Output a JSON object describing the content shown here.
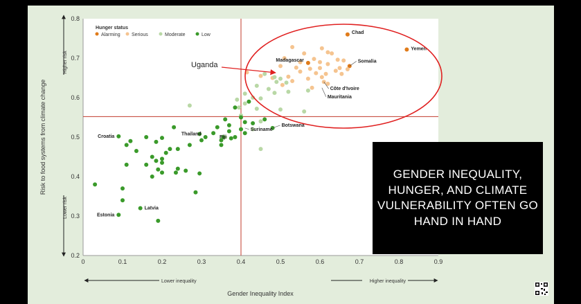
{
  "callout": {
    "text": "GENDER INEQUALITY, HUNGER, AND CLIMATE VULNERABILITY OFTEN GO HAND IN HAND"
  },
  "annotation": {
    "text": "Uganda"
  },
  "chart_data": {
    "type": "scatter",
    "xlabel": "Gender Inequality Index",
    "ylabel": "Risk to food systems from climate change",
    "x_arrow_left": "Lower inequality",
    "x_arrow_right": "Higher inequality",
    "y_arrow_low": "Lower risk",
    "y_arrow_high": "Higher risk",
    "xlim": [
      0,
      0.9
    ],
    "ylim": [
      0.2,
      0.8
    ],
    "xticks": [
      "0",
      "0.1",
      "0.2",
      "0.3",
      "0.4",
      "0.5",
      "0.6",
      "0.7",
      "0.8",
      "0.9"
    ],
    "yticks": [
      "0.2",
      "0.3",
      "0.4",
      "0.5",
      "0.6",
      "0.7",
      "0.8"
    ],
    "legend_title": "Hunger status",
    "legend_position": "top-left",
    "thresholds": {
      "x": 0.4,
      "y": 0.552
    },
    "colors": {
      "Alarming": "#e07b1a",
      "Serious": "#f5c490",
      "Moderate": "#b9d8a6",
      "Low": "#3a9a2a",
      "threshold": "#c0392b"
    },
    "series": [
      {
        "name": "Alarming",
        "points": [
          [
            0.67,
            0.76
          ],
          [
            0.82,
            0.722
          ],
          [
            0.675,
            0.68
          ],
          [
            0.57,
            0.688
          ]
        ]
      },
      {
        "name": "Serious",
        "points": [
          [
            0.53,
            0.728
          ],
          [
            0.605,
            0.725
          ],
          [
            0.62,
            0.715
          ],
          [
            0.56,
            0.712
          ],
          [
            0.63,
            0.712
          ],
          [
            0.51,
            0.7
          ],
          [
            0.585,
            0.698
          ],
          [
            0.645,
            0.696
          ],
          [
            0.66,
            0.694
          ],
          [
            0.55,
            0.69
          ],
          [
            0.6,
            0.69
          ],
          [
            0.62,
            0.685
          ],
          [
            0.5,
            0.68
          ],
          [
            0.54,
            0.676
          ],
          [
            0.575,
            0.673
          ],
          [
            0.6,
            0.675
          ],
          [
            0.65,
            0.675
          ],
          [
            0.67,
            0.672
          ],
          [
            0.55,
            0.666
          ],
          [
            0.64,
            0.668
          ],
          [
            0.415,
            0.664
          ],
          [
            0.59,
            0.662
          ],
          [
            0.615,
            0.66
          ],
          [
            0.655,
            0.66
          ],
          [
            0.45,
            0.655
          ],
          [
            0.52,
            0.653
          ],
          [
            0.57,
            0.648
          ],
          [
            0.605,
            0.652
          ],
          [
            0.48,
            0.65
          ],
          [
            0.53,
            0.642
          ],
          [
            0.61,
            0.64
          ],
          [
            0.62,
            0.635
          ],
          [
            0.505,
            0.632
          ],
          [
            0.58,
            0.625
          ]
        ]
      },
      {
        "name": "Moderate",
        "points": [
          [
            0.46,
            0.66
          ],
          [
            0.485,
            0.652
          ],
          [
            0.5,
            0.648
          ],
          [
            0.49,
            0.64
          ],
          [
            0.515,
            0.638
          ],
          [
            0.44,
            0.63
          ],
          [
            0.47,
            0.622
          ],
          [
            0.41,
            0.61
          ],
          [
            0.485,
            0.612
          ],
          [
            0.57,
            0.618
          ],
          [
            0.52,
            0.615
          ],
          [
            0.43,
            0.6
          ],
          [
            0.45,
            0.598
          ],
          [
            0.39,
            0.595
          ],
          [
            0.41,
            0.585
          ],
          [
            0.27,
            0.58
          ],
          [
            0.395,
            0.575
          ],
          [
            0.44,
            0.572
          ],
          [
            0.5,
            0.57
          ],
          [
            0.56,
            0.565
          ],
          [
            0.4,
            0.555
          ],
          [
            0.45,
            0.54
          ],
          [
            0.43,
            0.52
          ],
          [
            0.36,
            0.5
          ],
          [
            0.45,
            0.47
          ]
        ]
      },
      {
        "name": "Low",
        "points": [
          [
            0.42,
            0.59
          ],
          [
            0.385,
            0.575
          ],
          [
            0.4,
            0.55
          ],
          [
            0.46,
            0.545
          ],
          [
            0.36,
            0.545
          ],
          [
            0.41,
            0.538
          ],
          [
            0.43,
            0.535
          ],
          [
            0.34,
            0.525
          ],
          [
            0.37,
            0.53
          ],
          [
            0.23,
            0.525
          ],
          [
            0.48,
            0.523
          ],
          [
            0.4,
            0.52
          ],
          [
            0.37,
            0.515
          ],
          [
            0.33,
            0.51
          ],
          [
            0.41,
            0.51
          ],
          [
            0.295,
            0.508
          ],
          [
            0.355,
            0.5
          ],
          [
            0.16,
            0.5
          ],
          [
            0.09,
            0.502
          ],
          [
            0.375,
            0.497
          ],
          [
            0.385,
            0.5
          ],
          [
            0.31,
            0.5
          ],
          [
            0.2,
            0.498
          ],
          [
            0.3,
            0.492
          ],
          [
            0.35,
            0.492
          ],
          [
            0.12,
            0.49
          ],
          [
            0.185,
            0.488
          ],
          [
            0.27,
            0.48
          ],
          [
            0.35,
            0.48
          ],
          [
            0.22,
            0.47
          ],
          [
            0.11,
            0.48
          ],
          [
            0.24,
            0.47
          ],
          [
            0.135,
            0.465
          ],
          [
            0.21,
            0.46
          ],
          [
            0.175,
            0.45
          ],
          [
            0.2,
            0.445
          ],
          [
            0.185,
            0.44
          ],
          [
            0.2,
            0.435
          ],
          [
            0.11,
            0.43
          ],
          [
            0.16,
            0.43
          ],
          [
            0.24,
            0.42
          ],
          [
            0.26,
            0.415
          ],
          [
            0.19,
            0.418
          ],
          [
            0.2,
            0.41
          ],
          [
            0.235,
            0.41
          ],
          [
            0.295,
            0.408
          ],
          [
            0.175,
            0.4
          ],
          [
            0.03,
            0.38
          ],
          [
            0.1,
            0.37
          ],
          [
            0.285,
            0.36
          ],
          [
            0.1,
            0.34
          ],
          [
            0.145,
            0.32
          ],
          [
            0.09,
            0.303
          ],
          [
            0.19,
            0.288
          ]
        ]
      }
    ],
    "labels": [
      {
        "text": "Chad",
        "x": 0.67,
        "y": 0.76
      },
      {
        "text": "Yemen",
        "x": 0.82,
        "y": 0.722
      },
      {
        "text": "Somalia",
        "x": 0.675,
        "y": 0.68
      },
      {
        "text": "Madagascar",
        "x": 0.57,
        "y": 0.688
      },
      {
        "text": "Côte d'Ivoire",
        "x": 0.61,
        "y": 0.64
      },
      {
        "text": "Mauritania",
        "x": 0.605,
        "y": 0.625
      },
      {
        "text": "Botswana",
        "x": 0.48,
        "y": 0.523
      },
      {
        "text": "Suriname",
        "x": 0.41,
        "y": 0.523
      },
      {
        "text": "Thailand",
        "x": 0.31,
        "y": 0.508
      },
      {
        "text": "Fiji",
        "x": 0.335,
        "y": 0.5
      },
      {
        "text": "Croatia",
        "x": 0.09,
        "y": 0.502
      },
      {
        "text": "Latvia",
        "x": 0.145,
        "y": 0.32
      },
      {
        "text": "Estonia",
        "x": 0.09,
        "y": 0.303
      }
    ]
  }
}
